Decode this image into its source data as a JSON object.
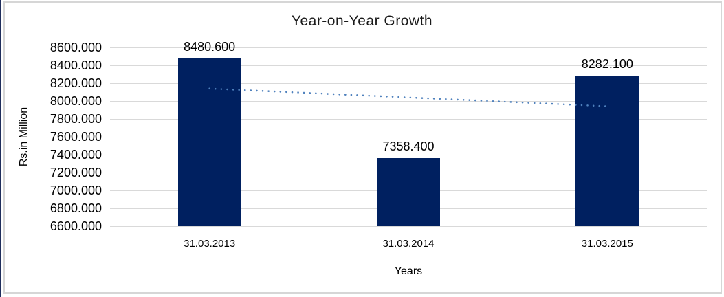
{
  "frame": {
    "border_color": "#d6d6d6",
    "left_edge_color": "#1f2d5c",
    "background": "#ffffff"
  },
  "chart_data": {
    "type": "bar",
    "title": "Year-on-Year Growth",
    "xlabel": "Years",
    "ylabel": "Rs.in Million",
    "categories": [
      "31.03.2013",
      "31.03.2014",
      "31.03.2015"
    ],
    "values": [
      8480.6,
      7358.4,
      8282.1
    ],
    "data_labels": [
      "8480.600",
      "7358.400",
      "8282.100"
    ],
    "ylim": [
      6600,
      8600
    ],
    "ytick_step": 200,
    "ytick_values": [
      8600,
      8400,
      8200,
      8000,
      7800,
      7600,
      7400,
      7200,
      7000,
      6800,
      6600
    ],
    "ytick_labels": [
      "8600.000",
      "8400.000",
      "8200.000",
      "8000.000",
      "7800.000",
      "7600.000",
      "7400.000",
      "7200.000",
      "7000.000",
      "6800.000",
      "6600.000"
    ],
    "grid": true,
    "legend": "none",
    "bar_color": "#002060",
    "gridline_color": "#d9d9d9",
    "text_color": "#000000",
    "trendline": {
      "style": "dotted",
      "color": "#4f81bd",
      "start_value": 8139.6,
      "end_value": 7941.1
    }
  }
}
